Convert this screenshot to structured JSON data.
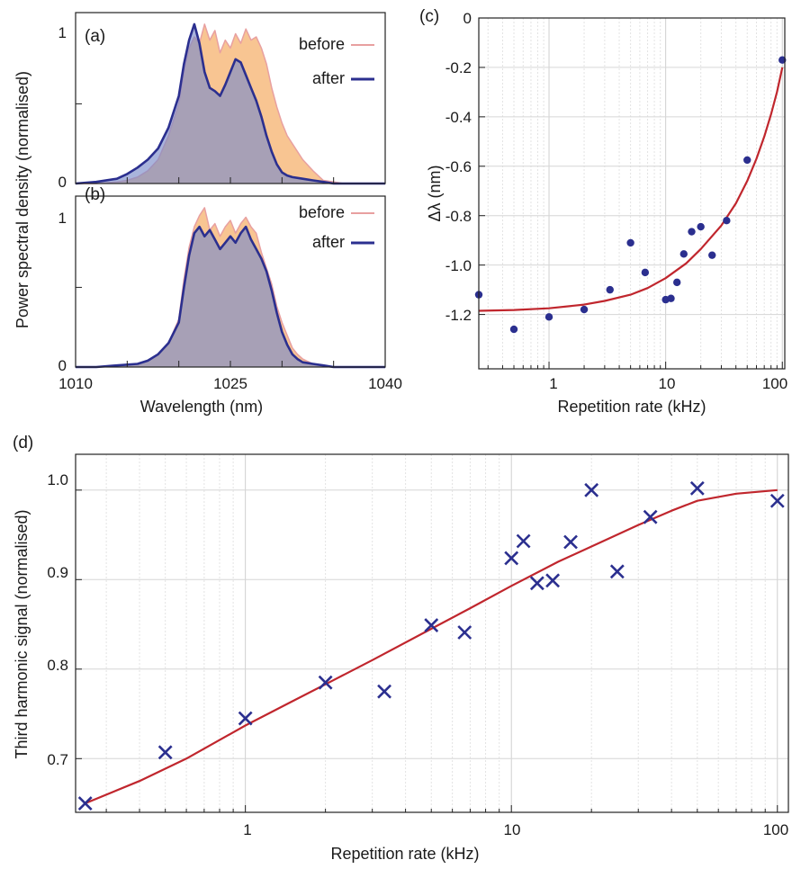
{
  "chart_data": [
    {
      "panel": "(a)",
      "type": "area",
      "ylabel": "Power spectral density (normalised)",
      "xlim": [
        1010,
        1040
      ],
      "ylim": [
        0,
        1.05
      ],
      "ytick_labels": [
        "0",
        "1"
      ],
      "legend": {
        "placement": "top-right",
        "entries": [
          "before",
          "after"
        ]
      },
      "colors": {
        "before_fill": "#f5b26e",
        "before_line": "#e8a0a0",
        "after_fill": "#7b8cc9",
        "after_line": "#2b2f8f"
      },
      "series": [
        {
          "name": "before",
          "x": [
            1010,
            1012,
            1014,
            1015,
            1016,
            1017,
            1018,
            1019,
            1020,
            1020.5,
            1021,
            1021.5,
            1022,
            1022.5,
            1023,
            1023.5,
            1024,
            1024.5,
            1025,
            1025.5,
            1026,
            1026.5,
            1027,
            1027.5,
            1028,
            1028.5,
            1029,
            1029.5,
            1030,
            1030.5,
            1031,
            1032,
            1033,
            1034,
            1035,
            1036,
            1038,
            1040
          ],
          "y": [
            0,
            0,
            0.01,
            0.02,
            0.04,
            0.08,
            0.15,
            0.3,
            0.5,
            0.7,
            0.85,
            0.92,
            0.88,
            1.0,
            0.9,
            0.96,
            0.82,
            0.9,
            0.85,
            0.94,
            0.88,
            0.97,
            0.9,
            0.92,
            0.85,
            0.75,
            0.6,
            0.48,
            0.38,
            0.3,
            0.25,
            0.15,
            0.08,
            0.02,
            0.01,
            0,
            0,
            0
          ]
        },
        {
          "name": "after",
          "x": [
            1010,
            1012,
            1014,
            1015,
            1016,
            1017,
            1018,
            1019,
            1020,
            1020.5,
            1021,
            1021.5,
            1022,
            1022.5,
            1023,
            1023.5,
            1024,
            1024.5,
            1025,
            1025.5,
            1026,
            1026.5,
            1027,
            1027.5,
            1028,
            1028.5,
            1029,
            1029.5,
            1030,
            1030.5,
            1031,
            1032,
            1033,
            1034,
            1035,
            1036,
            1038,
            1040
          ],
          "y": [
            0,
            0.01,
            0.03,
            0.06,
            0.1,
            0.15,
            0.22,
            0.35,
            0.55,
            0.75,
            0.9,
            1.0,
            0.88,
            0.7,
            0.6,
            0.58,
            0.55,
            0.62,
            0.7,
            0.78,
            0.76,
            0.68,
            0.6,
            0.52,
            0.42,
            0.3,
            0.2,
            0.12,
            0.07,
            0.05,
            0.04,
            0.03,
            0.02,
            0.01,
            0,
            0,
            0,
            0
          ]
        }
      ]
    },
    {
      "panel": "(b)",
      "type": "area",
      "xlabel": "Wavelength (nm)",
      "xlim": [
        1010,
        1040
      ],
      "ylim": [
        0,
        1.05
      ],
      "xtick_labels": [
        "1010",
        "1025",
        "1040"
      ],
      "ytick_labels": [
        "0",
        "1"
      ],
      "legend": {
        "placement": "top-right",
        "entries": [
          "before",
          "after"
        ]
      },
      "series": [
        {
          "name": "before",
          "x": [
            1010,
            1012,
            1014,
            1016,
            1017,
            1018,
            1019,
            1020,
            1020.5,
            1021,
            1021.5,
            1022,
            1022.5,
            1023,
            1023.5,
            1024,
            1024.5,
            1025,
            1025.5,
            1026,
            1026.5,
            1027,
            1027.5,
            1028,
            1028.5,
            1029,
            1029.5,
            1030,
            1030.5,
            1031,
            1031.5,
            1032,
            1033,
            1034,
            1035,
            1036,
            1038,
            1040
          ],
          "y": [
            0,
            0,
            0.01,
            0.02,
            0.04,
            0.08,
            0.15,
            0.3,
            0.55,
            0.75,
            0.88,
            0.95,
            1.0,
            0.86,
            0.9,
            0.82,
            0.88,
            0.92,
            0.84,
            0.9,
            0.94,
            0.88,
            0.84,
            0.72,
            0.62,
            0.52,
            0.38,
            0.28,
            0.2,
            0.12,
            0.08,
            0.05,
            0.02,
            0.01,
            0,
            0,
            0,
            0
          ]
        },
        {
          "name": "after",
          "x": [
            1010,
            1012,
            1014,
            1016,
            1017,
            1018,
            1019,
            1020,
            1020.5,
            1021,
            1021.5,
            1022,
            1022.5,
            1023,
            1023.5,
            1024,
            1024.5,
            1025,
            1025.5,
            1026,
            1026.5,
            1027,
            1027.5,
            1028,
            1028.5,
            1029,
            1029.5,
            1030,
            1030.5,
            1031,
            1031.5,
            1032,
            1033,
            1034,
            1035,
            1036,
            1038,
            1040
          ],
          "y": [
            0,
            0,
            0.01,
            0.02,
            0.04,
            0.08,
            0.15,
            0.28,
            0.5,
            0.7,
            0.84,
            0.88,
            0.82,
            0.86,
            0.8,
            0.74,
            0.78,
            0.82,
            0.78,
            0.84,
            0.88,
            0.8,
            0.74,
            0.68,
            0.6,
            0.48,
            0.34,
            0.22,
            0.14,
            0.08,
            0.05,
            0.03,
            0.02,
            0.01,
            0,
            0,
            0,
            0
          ]
        }
      ]
    },
    {
      "panel": "(c)",
      "type": "scatter",
      "xlabel": "Repetition rate (kHz)",
      "ylabel": "Δλ (nm)",
      "xscale": "log",
      "xlim": [
        0.25,
        105
      ],
      "ylim": [
        -1.42,
        0
      ],
      "xtick_labels": [
        "1",
        "10",
        "100"
      ],
      "ytick_labels": [
        "0",
        "-0.2",
        "-0.4",
        "-0.6",
        "-0.8",
        "-1.0",
        "-1.2"
      ],
      "grid": true,
      "colors": {
        "marker": "#2b2f8f",
        "fit": "#c0262d"
      },
      "series": [
        {
          "kind": "points",
          "x": [
            0.25,
            0.5,
            1,
            2,
            3.33,
            5,
            6.67,
            10,
            11.1,
            12.5,
            14.3,
            16.7,
            20,
            25,
            33.3,
            50,
            100
          ],
          "y": [
            -1.12,
            -1.26,
            -1.21,
            -1.18,
            -1.1,
            -0.91,
            -1.03,
            -1.14,
            -1.135,
            -1.07,
            -0.955,
            -0.865,
            -0.845,
            -0.96,
            -0.82,
            -0.575,
            -0.17
          ]
        },
        {
          "kind": "fit",
          "x": [
            0.25,
            0.5,
            1,
            2,
            3,
            5,
            7,
            10,
            15,
            20,
            30,
            40,
            50,
            60,
            70,
            80,
            90,
            100
          ],
          "y": [
            -1.185,
            -1.182,
            -1.175,
            -1.16,
            -1.145,
            -1.12,
            -1.093,
            -1.053,
            -0.993,
            -0.935,
            -0.84,
            -0.75,
            -0.66,
            -0.57,
            -0.48,
            -0.39,
            -0.3,
            -0.2
          ]
        }
      ]
    },
    {
      "panel": "(d)",
      "type": "scatter",
      "xlabel": "Repetition rate (kHz)",
      "ylabel": "Third harmonic signal (normalised)",
      "xscale": "log",
      "xlim": [
        0.23,
        110
      ],
      "ylim": [
        0.64,
        1.04
      ],
      "xtick_labels": [
        "1",
        "10",
        "100"
      ],
      "ytick_labels": [
        "0.7",
        "0.8",
        "0.9",
        "1.0"
      ],
      "grid": true,
      "colors": {
        "marker": "#2b2f8f",
        "fit": "#c0262d"
      },
      "series": [
        {
          "kind": "points",
          "x": [
            0.25,
            0.5,
            1,
            2,
            3.33,
            5,
            6.67,
            10,
            11.1,
            12.5,
            14.3,
            16.7,
            20,
            25,
            33.3,
            50,
            100
          ],
          "y": [
            0.65,
            0.707,
            0.745,
            0.785,
            0.775,
            0.849,
            0.841,
            0.924,
            0.943,
            0.896,
            0.899,
            0.942,
            1.0,
            0.909,
            0.97,
            1.002,
            0.988
          ]
        },
        {
          "kind": "fit",
          "x": [
            0.25,
            0.4,
            0.6,
            1,
            1.5,
            2,
            3,
            5,
            7,
            10,
            15,
            20,
            30,
            40,
            50,
            70,
            100
          ],
          "y": [
            0.65,
            0.675,
            0.7,
            0.737,
            0.764,
            0.783,
            0.81,
            0.845,
            0.868,
            0.893,
            0.92,
            0.937,
            0.961,
            0.977,
            0.988,
            0.996,
            1.0
          ]
        }
      ]
    }
  ]
}
